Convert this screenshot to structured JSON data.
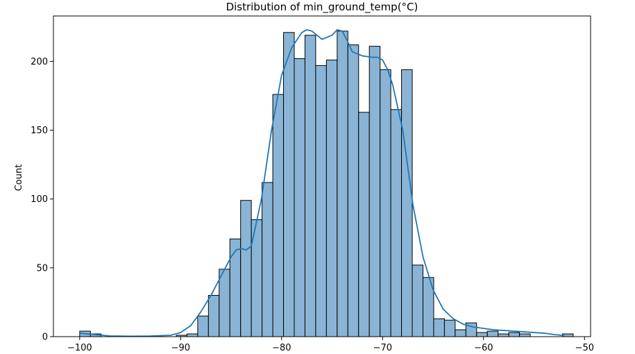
{
  "chart_data": {
    "type": "histogram",
    "title": "Distribution of min_ground_temp(°C)",
    "xlabel": "",
    "ylabel": "Count",
    "xlim": [
      -102.6,
      -49.4
    ],
    "ylim": [
      0,
      233
    ],
    "xticks": [
      -100,
      -90,
      -80,
      -70,
      -60,
      -50
    ],
    "yticks": [
      0,
      50,
      100,
      150,
      200
    ],
    "grid": false,
    "bin_start": -100.0,
    "bin_width": 1.0625,
    "counts": [
      4,
      2,
      0,
      0,
      0,
      0,
      0,
      0,
      0,
      1,
      2,
      15,
      30,
      49,
      71,
      99,
      85,
      112,
      176,
      221,
      202,
      219,
      197,
      201,
      222,
      212,
      163,
      211,
      194,
      165,
      194,
      52,
      43,
      13,
      12,
      5,
      10,
      3,
      4,
      2,
      3,
      2,
      0,
      0,
      0,
      2
    ],
    "kde": {
      "x": [
        -100,
        -97,
        -95,
        -93,
        -91,
        -90,
        -89,
        -88,
        -87,
        -86,
        -85,
        -84.5,
        -84,
        -83.5,
        -83,
        -82,
        -81,
        -80,
        -79,
        -78,
        -77.5,
        -77,
        -76,
        -75,
        -74.5,
        -74,
        -73.5,
        -73,
        -72,
        -71,
        -70.5,
        -70,
        -69.5,
        -69,
        -68,
        -67,
        -66,
        -65,
        -64,
        -63,
        -62,
        -61,
        -60,
        -59,
        -58,
        -57,
        -56,
        -55,
        -54,
        -53,
        -52
      ],
      "y": [
        2.5,
        0.5,
        0.3,
        0.4,
        1,
        3,
        8,
        18,
        30,
        44,
        58,
        63,
        64,
        63,
        66,
        100,
        150,
        190,
        210,
        221,
        223,
        222,
        216,
        219,
        223,
        222,
        215,
        207,
        204,
        203,
        203,
        201,
        194,
        183,
        150,
        96,
        58,
        34,
        20,
        13,
        9,
        7,
        6,
        5,
        4.5,
        4,
        3.5,
        3,
        2.5,
        1.5,
        0.8
      ]
    },
    "colors": {
      "bar_fill": "#8ab4d6",
      "bar_edge": "#000000",
      "kde_line": "#1f77b4"
    }
  }
}
